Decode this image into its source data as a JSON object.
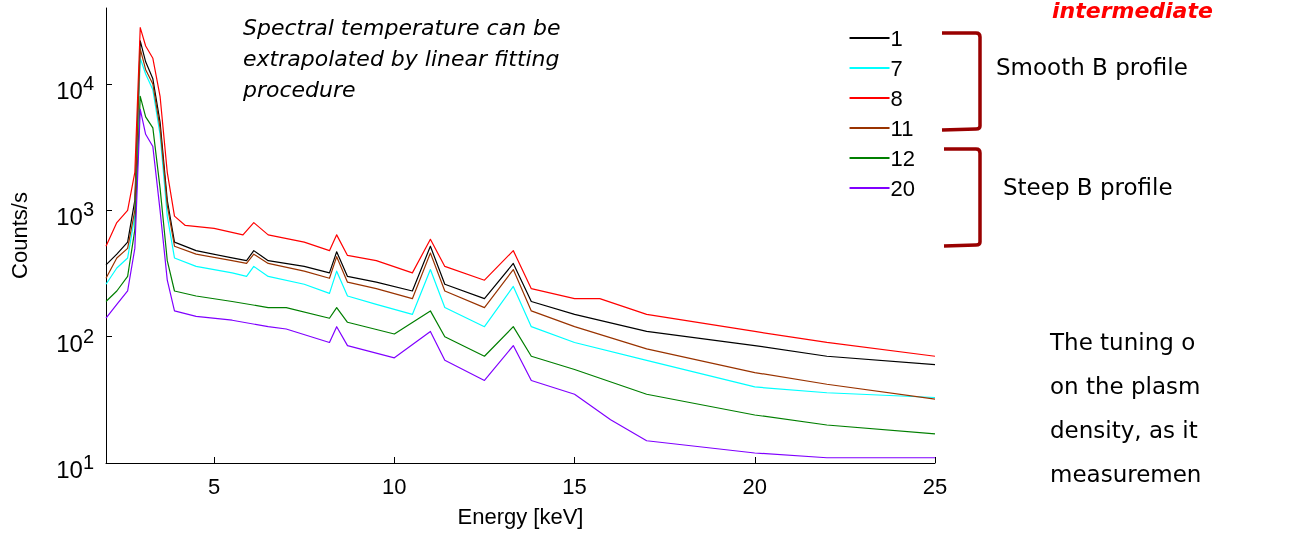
{
  "chart_data": {
    "type": "line",
    "xlabel": "Energy [keV]",
    "ylabel": "Counts/s",
    "log": "y",
    "grid": false,
    "legend": "top right",
    "xlim": [
      2,
      25
    ],
    "xticks": [
      5,
      10,
      15,
      20,
      25
    ],
    "ylim": [
      10,
      40000
    ],
    "yticks": [
      {
        "value": 10,
        "label": "10$^{1}$"
      },
      {
        "value": 100,
        "label": "10$^{2}$"
      },
      {
        "value": 1000,
        "label": "10$^{3}$"
      },
      {
        "value": 10000,
        "label": "10$^{4}$"
      }
    ],
    "annotations": [
      "Spectral temperature can be extrapolated by linear fitting procedure",
      "Smooth B profile",
      "Steep B profile",
      "intermediate",
      "The tuning o\non the plasm\ndensity, as it\nmeasuremen"
    ],
    "series": [
      {
        "name": "1",
        "color": "#000000",
        "x": [
          2.0,
          2.3,
          2.6,
          2.8,
          2.95,
          3.1,
          3.3,
          3.5,
          3.7,
          3.9,
          4.5,
          5.5,
          5.9,
          6.1,
          6.5,
          7.5,
          8.2,
          8.4,
          8.7,
          9.5,
          10.5,
          11.0,
          11.4,
          12.5,
          13.3,
          13.8,
          15,
          17,
          20,
          22,
          25
        ],
        "values": [
          370,
          450,
          560,
          1200,
          22000,
          15000,
          11000,
          5000,
          1200,
          560,
          480,
          420,
          400,
          480,
          400,
          360,
          320,
          470,
          300,
          270,
          230,
          520,
          260,
          200,
          380,
          190,
          150,
          110,
          85,
          70,
          60
        ]
      },
      {
        "name": "7",
        "color": "#00ffff",
        "x": [
          2.0,
          2.3,
          2.6,
          2.8,
          2.95,
          3.1,
          3.3,
          3.5,
          3.7,
          3.9,
          4.5,
          5.5,
          5.9,
          6.1,
          6.5,
          7.5,
          8.2,
          8.4,
          8.7,
          9.5,
          10.5,
          11.0,
          11.4,
          12.5,
          13.3,
          13.8,
          15,
          17,
          20,
          22,
          25
        ],
        "values": [
          260,
          350,
          420,
          900,
          16000,
          12000,
          9000,
          4000,
          900,
          420,
          360,
          320,
          300,
          360,
          300,
          260,
          220,
          330,
          210,
          180,
          150,
          340,
          170,
          120,
          250,
          120,
          90,
          65,
          40,
          36,
          33
        ]
      },
      {
        "name": "8",
        "color": "#ff0000",
        "x": [
          2.0,
          2.3,
          2.6,
          2.8,
          2.95,
          3.1,
          3.3,
          3.5,
          3.7,
          3.9,
          4.2,
          5.0,
          5.8,
          6.1,
          6.5,
          7.5,
          8.2,
          8.4,
          8.7,
          9.5,
          10.5,
          11.0,
          11.4,
          12.5,
          13.3,
          13.8,
          15,
          15.7,
          17,
          20,
          22,
          25
        ],
        "values": [
          520,
          800,
          1000,
          2000,
          28000,
          20000,
          16000,
          8000,
          2000,
          900,
          760,
          720,
          640,
          800,
          640,
          560,
          480,
          640,
          440,
          400,
          320,
          590,
          360,
          280,
          480,
          240,
          200,
          200,
          150,
          110,
          90,
          70
        ]
      },
      {
        "name": "11",
        "color": "#993300",
        "x": [
          2.0,
          2.3,
          2.6,
          2.8,
          2.95,
          3.1,
          3.3,
          3.5,
          3.7,
          3.9,
          4.5,
          5.5,
          5.9,
          6.1,
          6.5,
          7.5,
          8.2,
          8.4,
          8.7,
          9.5,
          10.5,
          11.0,
          11.4,
          12.5,
          13.3,
          13.8,
          15,
          17,
          20,
          22,
          25
        ],
        "values": [
          290,
          420,
          500,
          1000,
          19000,
          13000,
          10000,
          4500,
          1100,
          520,
          450,
          400,
          380,
          450,
          380,
          330,
          290,
          430,
          270,
          240,
          200,
          460,
          230,
          170,
          340,
          160,
          120,
          80,
          52,
          42,
          32
        ]
      },
      {
        "name": "12",
        "color": "#007f00",
        "x": [
          2.0,
          2.3,
          2.6,
          2.8,
          2.95,
          3.1,
          3.3,
          3.5,
          3.7,
          3.9,
          4.5,
          5.5,
          6.5,
          7.0,
          8.2,
          8.4,
          8.7,
          10.0,
          11.0,
          11.4,
          12.5,
          13.3,
          13.8,
          15,
          17,
          20,
          22,
          25
        ],
        "values": [
          190,
          230,
          300,
          700,
          8000,
          5500,
          4500,
          1500,
          400,
          230,
          210,
          190,
          170,
          170,
          140,
          170,
          130,
          105,
          160,
          100,
          70,
          120,
          70,
          55,
          35,
          24,
          20,
          17
        ]
      },
      {
        "name": "20",
        "color": "#8000ff",
        "x": [
          2.0,
          2.3,
          2.6,
          2.8,
          2.95,
          3.1,
          3.3,
          3.5,
          3.7,
          3.9,
          4.5,
          5.5,
          6.5,
          7.0,
          8.2,
          8.4,
          8.7,
          10.0,
          11.0,
          11.4,
          12.5,
          13.3,
          13.8,
          15,
          16,
          17,
          20,
          22,
          25
        ],
        "values": [
          140,
          180,
          230,
          500,
          6300,
          4000,
          3200,
          1000,
          280,
          160,
          145,
          135,
          120,
          115,
          90,
          120,
          85,
          68,
          110,
          65,
          45,
          85,
          45,
          35,
          22,
          15,
          12,
          11,
          11
        ]
      }
    ]
  }
}
